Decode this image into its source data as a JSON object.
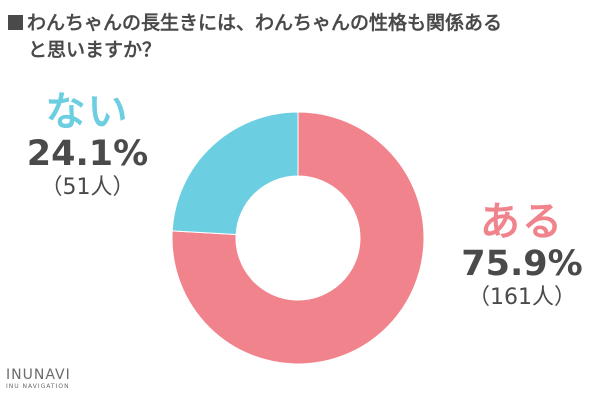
{
  "title": {
    "line1": "わんちゃんの長生きには、わんちゃんの性格も関係ある",
    "line2": "と思いますか？"
  },
  "chart_data": {
    "type": "pie",
    "donut": true,
    "slices": [
      {
        "label": "ある",
        "percent": 75.9,
        "percent_text": "75.9%",
        "count_text": "（161人）",
        "color": "#f1838c"
      },
      {
        "label": "ない",
        "percent": 24.1,
        "percent_text": "24.1%",
        "count_text": "（51人）",
        "color": "#6ccee1"
      }
    ]
  },
  "labels": {
    "nai": {
      "name": "ない",
      "pct": "24.1%",
      "count": "（51人）",
      "color": "#6ccee1"
    },
    "aru": {
      "name": "ある",
      "pct": "75.9%",
      "count": "（161人）",
      "color": "#f1838c"
    }
  },
  "logo": {
    "main": "INUNAVI",
    "sub": "INU NAVIGATION"
  }
}
